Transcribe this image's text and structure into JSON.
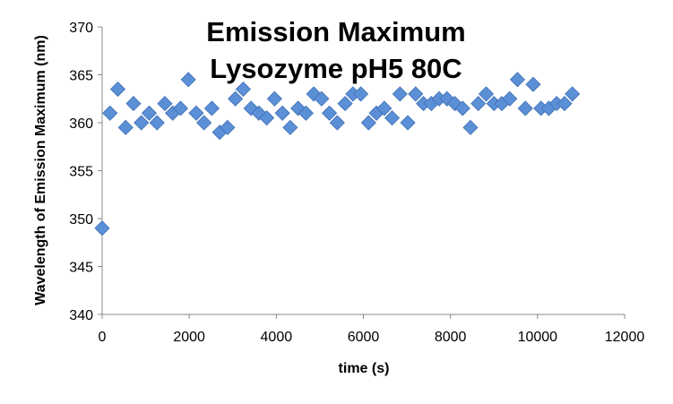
{
  "chart_data": {
    "type": "scatter",
    "title_line1": "Emission Maximum",
    "title_line2": "Lysozyme pH5 80C",
    "xlabel": "time (s)",
    "ylabel": "Wavelength of Emission Maximum (nm)",
    "xlim": [
      0,
      12000
    ],
    "ylim": [
      340,
      370
    ],
    "xticks": [
      0,
      2000,
      4000,
      6000,
      8000,
      10000,
      12000
    ],
    "yticks": [
      340,
      345,
      350,
      355,
      360,
      365,
      370
    ],
    "grid": false,
    "legend": "none",
    "marker": "diamond",
    "marker_color": "#5B8FD6",
    "x": [
      0,
      180,
      360,
      540,
      720,
      900,
      1080,
      1260,
      1440,
      1620,
      1800,
      1980,
      2160,
      2340,
      2520,
      2700,
      2880,
      3060,
      3240,
      3420,
      3600,
      3780,
      3960,
      4140,
      4320,
      4500,
      4680,
      4860,
      5040,
      5220,
      5400,
      5580,
      5760,
      5940,
      6120,
      6300,
      6480,
      6660,
      6840,
      7020,
      7200,
      7380,
      7560,
      7740,
      7920,
      8100,
      8280,
      8460,
      8640,
      8820,
      9000,
      9180,
      9360,
      9540,
      9720,
      9900,
      10080,
      10260,
      10440,
      10620,
      10800
    ],
    "y": [
      349.0,
      361.0,
      363.5,
      359.5,
      362.0,
      360.0,
      361.0,
      360.0,
      362.0,
      361.0,
      361.5,
      364.5,
      361.0,
      360.0,
      361.5,
      359.0,
      359.5,
      362.5,
      363.5,
      361.5,
      361.0,
      360.5,
      362.5,
      361.0,
      359.5,
      361.5,
      361.0,
      363.0,
      362.5,
      361.0,
      360.0,
      362.0,
      363.0,
      363.0,
      360.0,
      361.0,
      361.5,
      360.5,
      363.0,
      360.0,
      363.0,
      362.0,
      362.0,
      362.5,
      362.5,
      362.0,
      361.5,
      359.5,
      362.0,
      363.0,
      362.0,
      362.0,
      362.5,
      364.5,
      361.5,
      364.0,
      361.5,
      361.5,
      362.0,
      362.0,
      363.0
    ]
  }
}
